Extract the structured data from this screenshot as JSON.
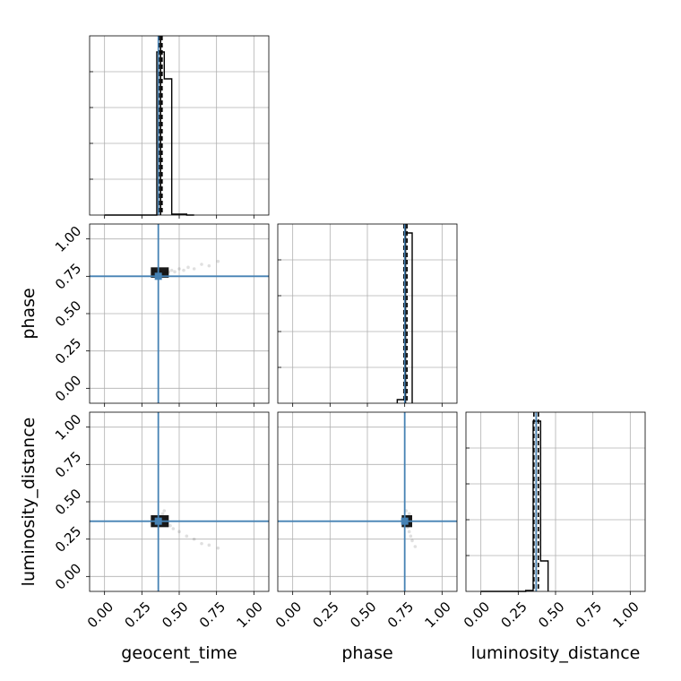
{
  "chart_data": {
    "type": "corner",
    "parameters": [
      "geocent_time",
      "phase",
      "luminosity_distance"
    ],
    "tick_values": [
      0.0,
      0.25,
      0.5,
      0.75,
      1.0
    ],
    "tick_labels": [
      "0.00",
      "0.25",
      "0.50",
      "0.75",
      "1.00"
    ],
    "xlim": [
      -0.1,
      1.1
    ],
    "ylim": [
      -0.1,
      1.1
    ],
    "truths": {
      "geocent_time": 0.36,
      "phase": 0.75,
      "luminosity_distance": 0.37
    },
    "truth_color": "#4682b4",
    "quantile_lines": {
      "geocent_time": [
        0.365,
        0.375,
        0.385
      ],
      "phase": [
        0.745,
        0.755,
        0.765
      ],
      "luminosity_distance": [
        0.355,
        0.37,
        0.385
      ]
    },
    "histograms": {
      "geocent_time": {
        "edges": [
          0.0,
          0.05,
          0.1,
          0.15,
          0.2,
          0.25,
          0.3,
          0.35,
          0.4,
          0.45,
          0.5,
          0.55,
          0.6
        ],
        "counts": [
          0,
          0,
          0,
          0,
          0,
          0,
          0,
          0.91,
          0.76,
          0.005,
          0.005,
          0,
          0
        ]
      },
      "phase": {
        "edges": [
          0.7,
          0.75,
          0.8
        ],
        "counts": [
          0.02,
          0.95
        ]
      },
      "luminosity_distance": {
        "edges": [
          0.0,
          0.05,
          0.1,
          0.15,
          0.2,
          0.25,
          0.3,
          0.35,
          0.4,
          0.45
        ],
        "counts": [
          0,
          0,
          0,
          0,
          0,
          0,
          0.005,
          0.95,
          0.17
        ]
      }
    },
    "scatter": {
      "phase_vs_geocent_time": [
        [
          0.36,
          0.76
        ],
        [
          0.37,
          0.77
        ],
        [
          0.38,
          0.78
        ],
        [
          0.39,
          0.76
        ],
        [
          0.4,
          0.77
        ],
        [
          0.41,
          0.78
        ],
        [
          0.42,
          0.77
        ],
        [
          0.43,
          0.78
        ],
        [
          0.45,
          0.79
        ],
        [
          0.47,
          0.78
        ],
        [
          0.5,
          0.8
        ],
        [
          0.53,
          0.79
        ],
        [
          0.56,
          0.81
        ],
        [
          0.6,
          0.8
        ],
        [
          0.65,
          0.83
        ],
        [
          0.7,
          0.82
        ],
        [
          0.76,
          0.85
        ]
      ],
      "luminosity_distance_vs_geocent_time": [
        [
          0.36,
          0.36
        ],
        [
          0.37,
          0.38
        ],
        [
          0.38,
          0.4
        ],
        [
          0.39,
          0.42
        ],
        [
          0.4,
          0.44
        ],
        [
          0.41,
          0.39
        ],
        [
          0.42,
          0.36
        ],
        [
          0.44,
          0.34
        ],
        [
          0.46,
          0.32
        ],
        [
          0.5,
          0.3
        ],
        [
          0.55,
          0.27
        ],
        [
          0.6,
          0.25
        ],
        [
          0.65,
          0.22
        ],
        [
          0.7,
          0.21
        ],
        [
          0.76,
          0.19
        ]
      ],
      "luminosity_distance_vs_phase": [
        [
          0.75,
          0.36
        ],
        [
          0.76,
          0.38
        ],
        [
          0.77,
          0.4
        ],
        [
          0.78,
          0.42
        ],
        [
          0.76,
          0.44
        ],
        [
          0.77,
          0.33
        ],
        [
          0.78,
          0.3
        ],
        [
          0.79,
          0.27
        ],
        [
          0.8,
          0.24
        ],
        [
          0.82,
          0.2
        ]
      ]
    },
    "density_blobs": {
      "phase_vs_geocent_time": {
        "x": [
          0.31,
          0.43
        ],
        "y": [
          0.74,
          0.81
        ]
      },
      "luminosity_distance_vs_geocent_time": {
        "x": [
          0.31,
          0.43
        ],
        "y": [
          0.33,
          0.41
        ]
      },
      "luminosity_distance_vs_phase": {
        "x": [
          0.73,
          0.8
        ],
        "y": [
          0.33,
          0.41
        ]
      }
    },
    "grid": true,
    "title": "",
    "xlabel": "",
    "ylabel": ""
  }
}
